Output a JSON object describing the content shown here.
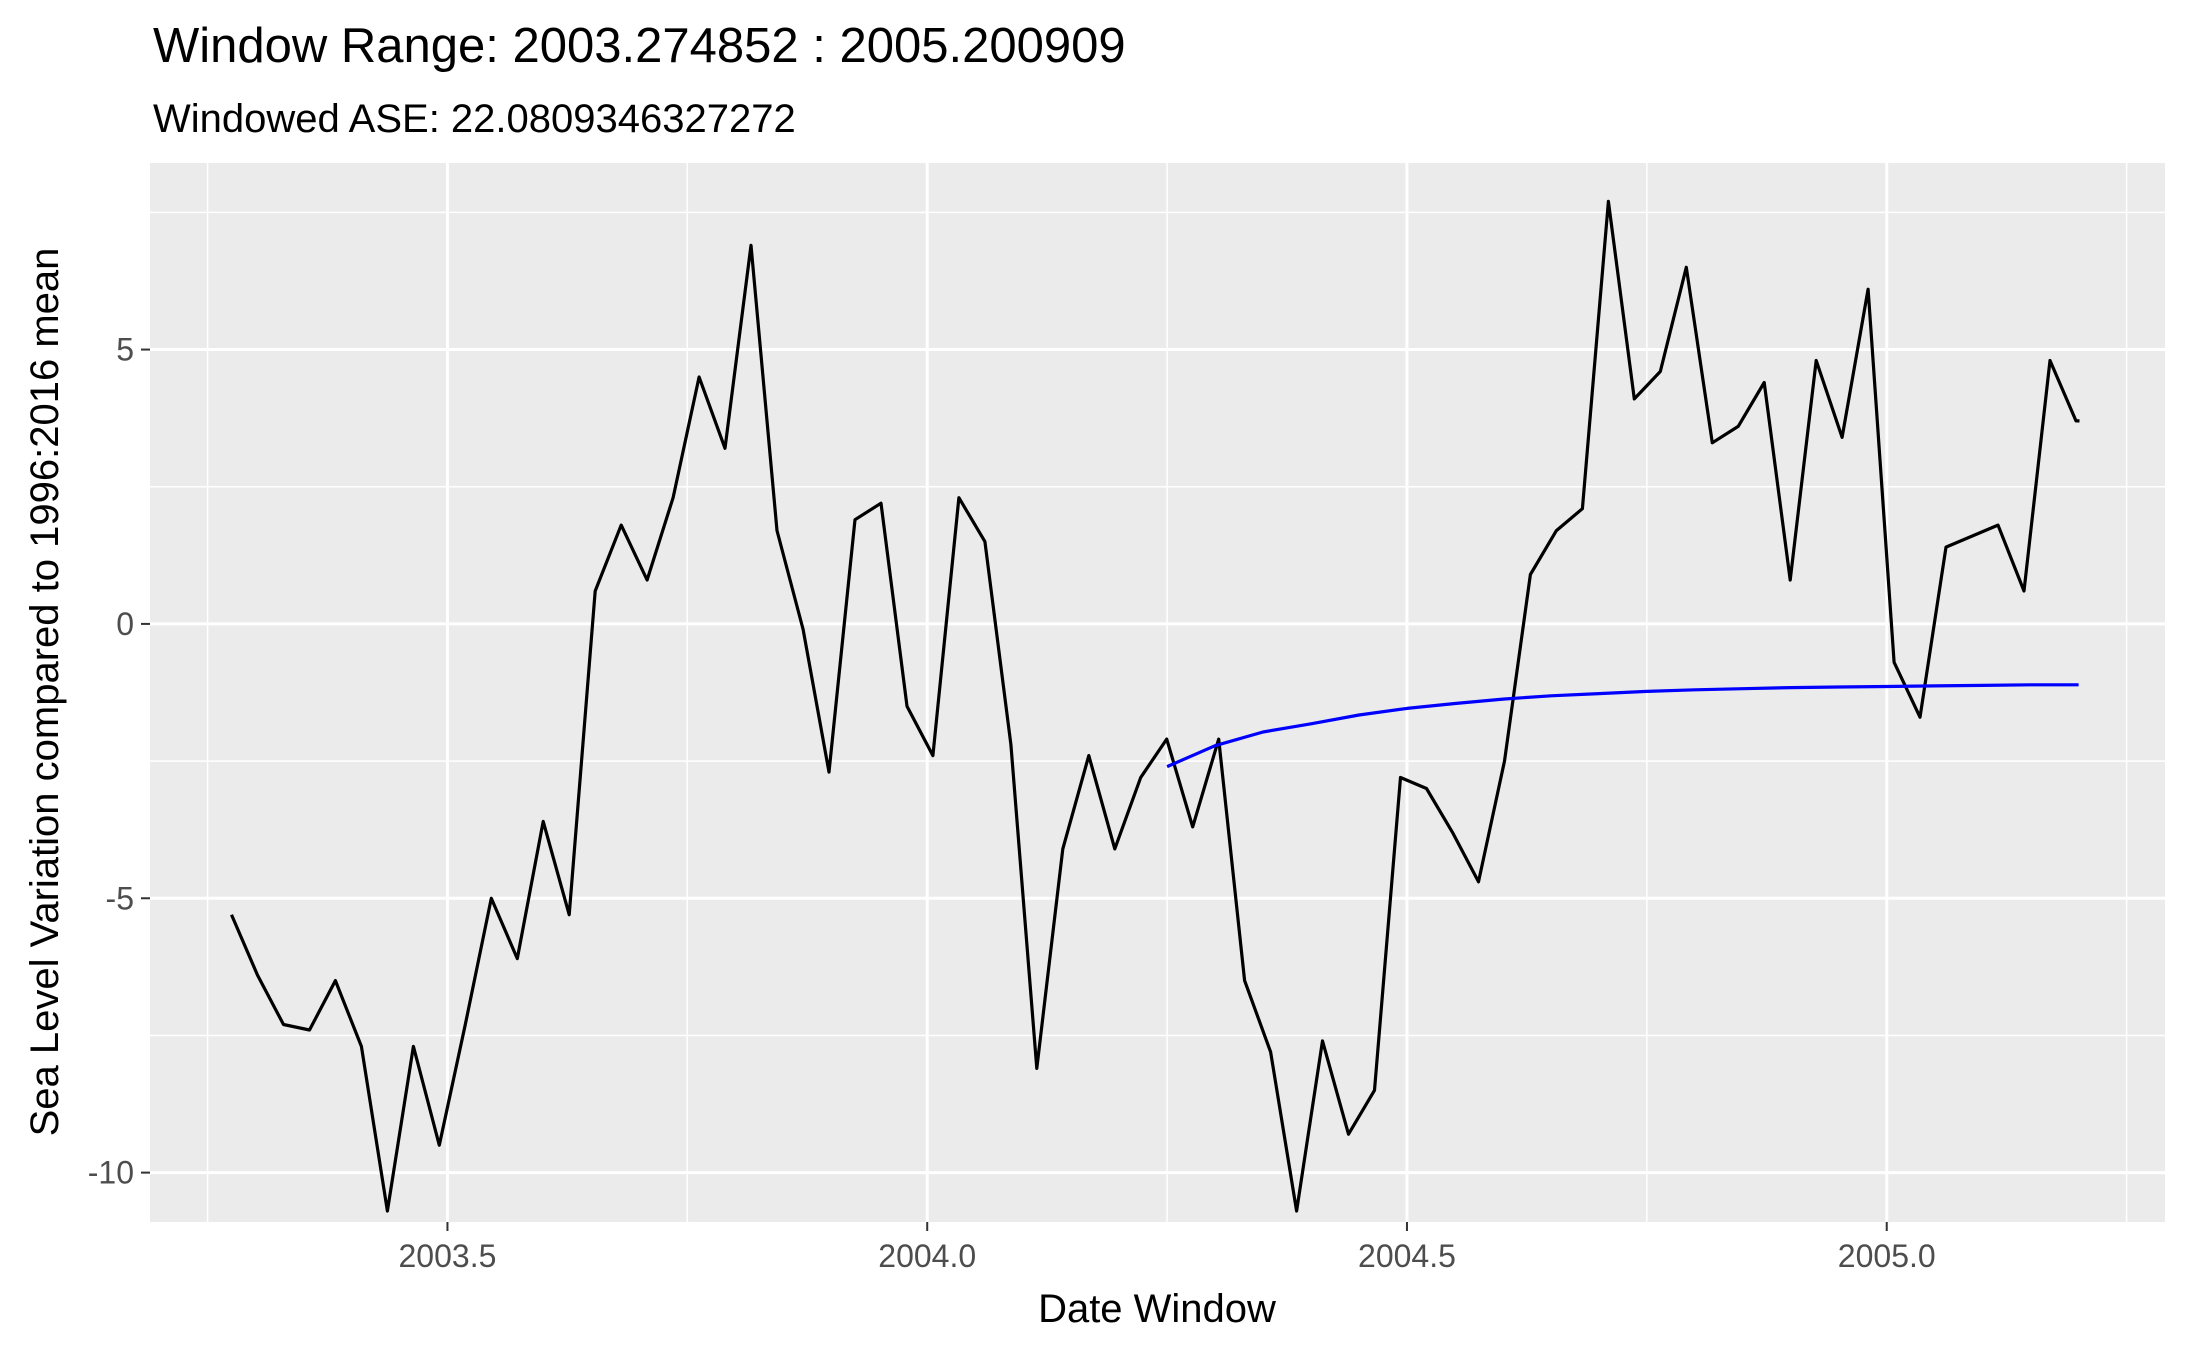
{
  "chart_data": {
    "type": "line",
    "title": "Window Range: 2003.274852 : 2005.200909",
    "subtitle": "Windowed ASE: 22.0809346327272",
    "xlabel": "Date Window",
    "ylabel": "Sea Level Variation compared to 1996:2016 mean",
    "xlim": [
      2003.19,
      2005.29
    ],
    "ylim": [
      -10.9,
      8.4
    ],
    "x_ticks": [
      2003.5,
      2004.0,
      2004.5,
      2005.0
    ],
    "x_tick_labels": [
      "2003.5",
      "2004.0",
      "2004.5",
      "2005.0"
    ],
    "y_ticks": [
      -10,
      -5,
      0,
      5
    ],
    "y_tick_labels": [
      "-10",
      "-5",
      "0",
      "5"
    ],
    "grid": true,
    "background": "#EBEBEB",
    "series": [
      {
        "color": "#000000",
        "x": [
          2003.2749,
          2003.302,
          2003.3291,
          2003.3562,
          2003.3832,
          2003.4103,
          2003.4374,
          2003.4645,
          2003.4915,
          2003.5186,
          2003.5457,
          2003.5728,
          2003.5998,
          2003.6269,
          2003.654,
          2003.6811,
          2003.7081,
          2003.7352,
          2003.7623,
          2003.7893,
          2003.8164,
          2003.8435,
          2003.8706,
          2003.8976,
          2003.9247,
          2003.9518,
          2003.9789,
          2004.0059,
          2004.033,
          2004.0601,
          2004.0872,
          2004.1142,
          2004.1413,
          2004.1684,
          2004.1955,
          2004.2225,
          2004.2496,
          2004.2767,
          2004.3038,
          2004.3308,
          2004.3579,
          2004.385,
          2004.412,
          2004.4391,
          2004.4662,
          2004.4933,
          2004.5203,
          2004.5474,
          2004.5745,
          2004.6016,
          2004.6286,
          2004.6557,
          2004.6828,
          2004.7099,
          2004.7369,
          2004.764,
          2004.7911,
          2004.8182,
          2004.8452,
          2004.8723,
          2004.8994,
          2004.9265,
          2004.9535,
          2004.9806,
          2005.0077,
          2005.0347,
          2005.0618,
          2005.0889,
          2005.116,
          2005.143,
          2005.1701,
          2005.1972,
          2005.2009
        ],
        "values": [
          -5.3,
          -6.4,
          -7.3,
          -7.4,
          -6.5,
          -7.7,
          -10.7,
          -7.7,
          -9.5,
          -7.3,
          -5.0,
          -6.1,
          -3.6,
          -5.3,
          0.6,
          1.8,
          0.8,
          2.3,
          4.5,
          3.2,
          6.9,
          1.7,
          -0.1,
          -2.7,
          1.9,
          2.2,
          -1.5,
          -2.4,
          2.3,
          1.5,
          -2.2,
          -8.1,
          -4.1,
          -2.4,
          -4.1,
          -2.8,
          -2.1,
          -3.7,
          -2.1,
          -6.5,
          -7.8,
          -10.7,
          -7.6,
          -9.3,
          -8.5,
          -2.8,
          -3.0,
          -3.8,
          -4.7,
          -2.5,
          0.9,
          1.7,
          2.1,
          7.7,
          4.1,
          4.6,
          6.5,
          3.3,
          3.6,
          4.4,
          0.8,
          4.8,
          3.4,
          6.1,
          -0.7,
          -1.7,
          1.4,
          1.6,
          1.8,
          0.6,
          4.8,
          3.7,
          3.7
        ]
      },
      {
        "color": "#0000FF",
        "x": [
          2004.25,
          2004.3,
          2004.35,
          2004.4,
          2004.45,
          2004.5,
          2004.55,
          2004.6,
          2004.65,
          2004.7,
          2004.75,
          2004.8,
          2004.85,
          2004.9,
          2004.95,
          2005.0,
          2005.05,
          2005.1,
          2005.15,
          2005.2
        ],
        "values": [
          -2.6,
          -2.22,
          -1.97,
          -1.82,
          -1.66,
          -1.54,
          -1.45,
          -1.37,
          -1.31,
          -1.27,
          -1.23,
          -1.2,
          -1.18,
          -1.16,
          -1.15,
          -1.14,
          -1.13,
          -1.12,
          -1.11,
          -1.11
        ]
      }
    ]
  }
}
